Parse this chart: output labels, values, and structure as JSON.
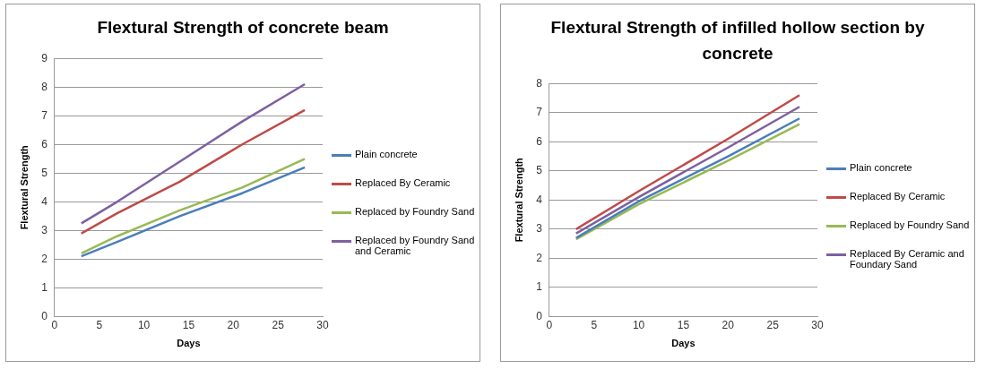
{
  "chart_data": [
    {
      "type": "line",
      "title": "Flextural Strength of concrete beam",
      "xlabel": "Days",
      "ylabel": "Flextural Strength",
      "x": [
        3,
        7,
        14,
        21,
        28
      ],
      "series": [
        {
          "name": "Plain concrete",
          "color": "#4a7ebb",
          "values": [
            2.1,
            2.6,
            3.5,
            4.3,
            5.2
          ]
        },
        {
          "name": "Replaced By Ceramic",
          "color": "#be4b48",
          "values": [
            2.9,
            3.6,
            4.7,
            6.0,
            7.2
          ]
        },
        {
          "name": "Replaced by Foundry Sand",
          "color": "#98b954",
          "values": [
            2.2,
            2.8,
            3.7,
            4.5,
            5.5
          ]
        },
        {
          "name": "Replaced by Foundry Sand and Ceramic",
          "color": "#7d60a0",
          "values": [
            3.25,
            4.0,
            5.4,
            6.8,
            8.1
          ]
        }
      ],
      "xlim": [
        0,
        30
      ],
      "xticks": [
        0,
        5,
        10,
        15,
        20,
        25,
        30
      ],
      "ylim": [
        0,
        9
      ],
      "yticks": [
        0,
        1,
        2,
        3,
        4,
        5,
        6,
        7,
        8,
        9
      ],
      "grid": "y",
      "legend": "right",
      "marker": "none"
    },
    {
      "type": "line",
      "title": "Flextural Strength of infilled hollow section by concrete",
      "xlabel": "Days",
      "ylabel": "Flextural Strength",
      "x": [
        3,
        10,
        20,
        28
      ],
      "series": [
        {
          "name": "Plain concrete",
          "color": "#4a7ebb",
          "values": [
            2.7,
            3.95,
            5.5,
            6.8
          ]
        },
        {
          "name": "Replaced By Ceramic",
          "color": "#be4b48",
          "values": [
            3.0,
            4.3,
            6.1,
            7.6
          ]
        },
        {
          "name": "Replaced by Foundry Sand",
          "color": "#98b954",
          "values": [
            2.65,
            3.85,
            5.35,
            6.6
          ]
        },
        {
          "name": "Replaced By Ceramic and Foundary Sand",
          "color": "#7d60a0",
          "values": [
            2.85,
            4.1,
            5.8,
            7.2
          ]
        }
      ],
      "xlim": [
        0,
        30
      ],
      "xticks": [
        0,
        5,
        10,
        15,
        20,
        25,
        30
      ],
      "ylim": [
        0,
        8
      ],
      "yticks": [
        0,
        1,
        2,
        3,
        4,
        5,
        6,
        7,
        8
      ],
      "grid": "y",
      "legend": "right",
      "marker": "none"
    }
  ]
}
